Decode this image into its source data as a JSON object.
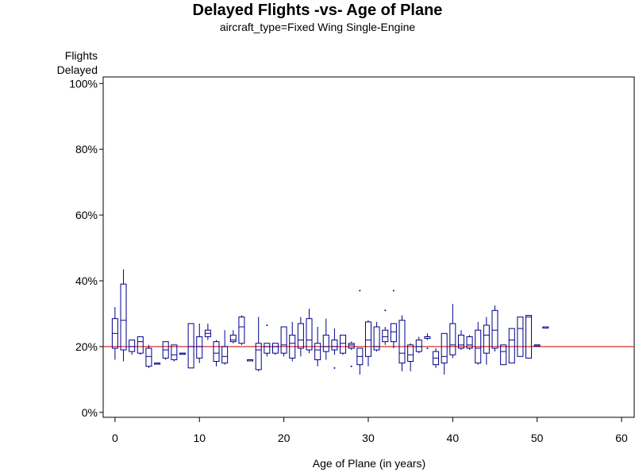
{
  "chart_data": {
    "type": "box",
    "title": "Delayed Flights -vs- Age of Plane",
    "subtitle": "aircraft_type=Fixed Wing Single-Engine",
    "ylabel_lines": [
      "Flights",
      "Delayed"
    ],
    "xlabel": "Age of Plane (in years)",
    "xlim": [
      -1.4,
      61.5
    ],
    "ylim": [
      -1.5,
      102
    ],
    "x_ticks": [
      0,
      10,
      20,
      30,
      40,
      50,
      60
    ],
    "y_ticks": [
      0,
      20,
      40,
      60,
      80,
      100
    ],
    "y_tick_labels": [
      "0%",
      "20%",
      "40%",
      "60%",
      "80%",
      "100%"
    ],
    "reference_line": {
      "y": 20,
      "color": "#cc0000"
    },
    "box_color": "#00008b",
    "boxes": [
      {
        "x": 0,
        "min": 16,
        "q1": 19.5,
        "median": 24,
        "q3": 28.5,
        "max": 32
      },
      {
        "x": 1,
        "min": 15.5,
        "q1": 19,
        "median": 28,
        "q3": 39,
        "max": 43.5
      },
      {
        "x": 2,
        "min": 17.5,
        "q1": 18.5,
        "median": 20,
        "q3": 22,
        "max": 22
      },
      {
        "x": 3,
        "min": 17.5,
        "q1": 18,
        "median": 21.5,
        "q3": 23,
        "max": 23
      },
      {
        "x": 4,
        "min": 13.5,
        "q1": 14,
        "median": 17,
        "q3": 19.5,
        "max": 20.5
      },
      {
        "x": 5,
        "min": 15,
        "q1": 15,
        "median": 15,
        "q3": 15,
        "max": 15
      },
      {
        "x": 6,
        "min": 16,
        "q1": 16.5,
        "median": 19,
        "q3": 21.5,
        "max": 21.5
      },
      {
        "x": 7,
        "min": 15.5,
        "q1": 16,
        "median": 17.5,
        "q3": 20.5,
        "max": 20.5
      },
      {
        "x": 8,
        "min": 18,
        "q1": 18,
        "median": 18,
        "q3": 18,
        "max": 18
      },
      {
        "x": 9,
        "min": 13.5,
        "q1": 13.5,
        "median": 20,
        "q3": 27,
        "max": 27
      },
      {
        "x": 10,
        "min": 15,
        "q1": 16.5,
        "median": 20,
        "q3": 23,
        "max": 27
      },
      {
        "x": 11,
        "min": 22,
        "q1": 23,
        "median": 24,
        "q3": 25,
        "max": 27
      },
      {
        "x": 12,
        "min": 14,
        "q1": 15.5,
        "median": 18,
        "q3": 21.5,
        "max": 22
      },
      {
        "x": 13,
        "min": 14.5,
        "q1": 15,
        "median": 17,
        "q3": 20,
        "max": 25
      },
      {
        "x": 14,
        "min": 21,
        "q1": 21.5,
        "median": 22,
        "q3": 23.5,
        "max": 25
      },
      {
        "x": 15,
        "min": 20.5,
        "q1": 21,
        "median": 26,
        "q3": 29,
        "max": 29.5
      },
      {
        "x": 16,
        "min": 16,
        "q1": 16,
        "median": 16,
        "q3": 16,
        "max": 16
      },
      {
        "x": 17,
        "min": 12.5,
        "q1": 13,
        "median": 19,
        "q3": 21,
        "max": 29
      },
      {
        "x": 18,
        "min": 17,
        "q1": 18,
        "median": 20,
        "q3": 21,
        "max": 21
      },
      {
        "x": 19,
        "min": 17.5,
        "q1": 18,
        "median": 20,
        "q3": 21,
        "max": 21
      },
      {
        "x": 20,
        "min": 17,
        "q1": 18,
        "median": 20.5,
        "q3": 26,
        "max": 26
      },
      {
        "x": 21,
        "min": 15.5,
        "q1": 16.5,
        "median": 21,
        "q3": 23.5,
        "max": 27.5
      },
      {
        "x": 22,
        "min": 17,
        "q1": 19.5,
        "median": 22,
        "q3": 27,
        "max": 29
      },
      {
        "x": 23,
        "min": 18,
        "q1": 19,
        "median": 22,
        "q3": 28.5,
        "max": 31.5
      },
      {
        "x": 24,
        "min": 14,
        "q1": 16,
        "median": 19,
        "q3": 21,
        "max": 26
      },
      {
        "x": 25,
        "min": 16,
        "q1": 18.5,
        "median": 20,
        "q3": 23.5,
        "max": 28.5
      },
      {
        "x": 26,
        "min": 17.5,
        "q1": 19,
        "median": 20,
        "q3": 22,
        "max": 25.5
      },
      {
        "x": 27,
        "min": 17.5,
        "q1": 18,
        "median": 21,
        "q3": 23.5,
        "max": 23.5
      },
      {
        "x": 28,
        "min": 19,
        "q1": 19.5,
        "median": 20.5,
        "q3": 21,
        "max": 21.5
      },
      {
        "x": 29,
        "min": 11.5,
        "q1": 14.5,
        "median": 17,
        "q3": 19.5,
        "max": 19.5
      },
      {
        "x": 30,
        "min": 14,
        "q1": 17,
        "median": 22,
        "q3": 27.5,
        "max": 28
      },
      {
        "x": 31,
        "min": 18.5,
        "q1": 19,
        "median": 20,
        "q3": 26,
        "max": 27.5
      },
      {
        "x": 32,
        "min": 20.5,
        "q1": 21.5,
        "median": 23,
        "q3": 25,
        "max": 26
      },
      {
        "x": 33,
        "min": 19.5,
        "q1": 21.5,
        "median": 24.5,
        "q3": 27,
        "max": 27
      },
      {
        "x": 34,
        "min": 12.5,
        "q1": 15,
        "median": 18,
        "q3": 28,
        "max": 29.5
      },
      {
        "x": 35,
        "min": 12.5,
        "q1": 15.5,
        "median": 17.5,
        "q3": 20.5,
        "max": 21
      },
      {
        "x": 36,
        "min": 18,
        "q1": 18.5,
        "median": 20,
        "q3": 22,
        "max": 23
      },
      {
        "x": 37,
        "min": 22,
        "q1": 22.5,
        "median": 23,
        "q3": 23,
        "max": 24
      },
      {
        "x": 38,
        "min": 13.5,
        "q1": 14.5,
        "median": 16.5,
        "q3": 18.5,
        "max": 19.5
      },
      {
        "x": 39,
        "min": 11.5,
        "q1": 15,
        "median": 17,
        "q3": 24,
        "max": 24
      },
      {
        "x": 40,
        "min": 16.5,
        "q1": 17.5,
        "median": 20.5,
        "q3": 27,
        "max": 33
      },
      {
        "x": 41,
        "min": 19,
        "q1": 19.5,
        "median": 20.5,
        "q3": 23.5,
        "max": 25
      },
      {
        "x": 42,
        "min": 19,
        "q1": 19.5,
        "median": 20.5,
        "q3": 23,
        "max": 23.5
      },
      {
        "x": 43,
        "min": 14.5,
        "q1": 15,
        "median": 19.5,
        "q3": 25,
        "max": 27.5
      },
      {
        "x": 44,
        "min": 14.5,
        "q1": 18,
        "median": 23.5,
        "q3": 26.5,
        "max": 29
      },
      {
        "x": 45,
        "min": 18.5,
        "q1": 19.5,
        "median": 25,
        "q3": 31,
        "max": 32.5
      },
      {
        "x": 46,
        "min": 14.5,
        "q1": 14.5,
        "median": 18.5,
        "q3": 20.5,
        "max": 20.5
      },
      {
        "x": 47,
        "min": 15,
        "q1": 15,
        "median": 22,
        "q3": 25.5,
        "max": 25.5
      },
      {
        "x": 48,
        "min": 17,
        "q1": 17,
        "median": 25.5,
        "q3": 29,
        "max": 29
      },
      {
        "x": 49,
        "min": 16.5,
        "q1": 16.5,
        "median": 29,
        "q3": 29.5,
        "max": 29.5
      },
      {
        "x": 50,
        "min": 20.5,
        "q1": 20.5,
        "median": 20.5,
        "q3": 20.5,
        "max": 20.5
      },
      {
        "x": 51,
        "min": 26,
        "q1": 26,
        "median": 26,
        "q3": 26,
        "max": 26
      }
    ],
    "outliers": [
      {
        "x": 18,
        "y": 26.5
      },
      {
        "x": 26,
        "y": 13.5
      },
      {
        "x": 28,
        "y": 14
      },
      {
        "x": 29,
        "y": 37
      },
      {
        "x": 32,
        "y": 31
      },
      {
        "x": 33,
        "y": 37
      },
      {
        "x": 37,
        "y": 19.5
      }
    ]
  }
}
